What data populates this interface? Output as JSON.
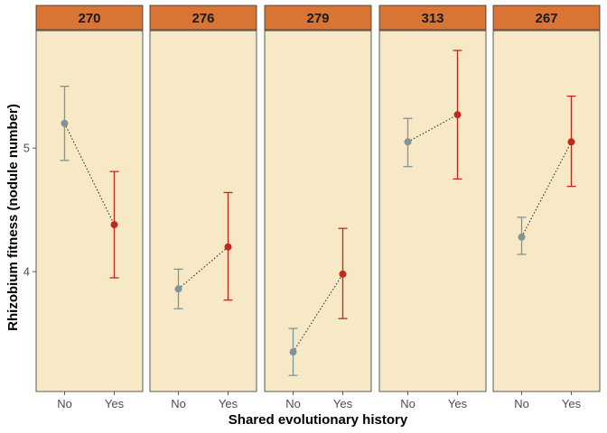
{
  "chart_data": {
    "type": "scatter",
    "title": "",
    "xlabel": "Shared evolutionary history",
    "ylabel": "Rhizobium fitness (nodule number)",
    "categories": [
      "No",
      "Yes"
    ],
    "ylim": [
      3.03,
      5.95
    ],
    "y_ticks": [
      4,
      5
    ],
    "grid": false,
    "legend": "none",
    "colors": {
      "No": "#7f9599",
      "Yes": "#c0291a",
      "panel_fill": "#f7e9c6",
      "strip_fill": "#d87534",
      "connector": "#333333"
    },
    "panels": [
      {
        "label": "270",
        "points": [
          {
            "category": "No",
            "mean": 5.2,
            "lower": 4.9,
            "upper": 5.5
          },
          {
            "category": "Yes",
            "mean": 4.38,
            "lower": 3.95,
            "upper": 4.81
          }
        ]
      },
      {
        "label": "276",
        "points": [
          {
            "category": "No",
            "mean": 3.86,
            "lower": 3.7,
            "upper": 4.02
          },
          {
            "category": "Yes",
            "mean": 4.2,
            "lower": 3.77,
            "upper": 4.64
          }
        ]
      },
      {
        "label": "279",
        "points": [
          {
            "category": "No",
            "mean": 3.35,
            "lower": 3.16,
            "upper": 3.54
          },
          {
            "category": "Yes",
            "mean": 3.98,
            "lower": 3.62,
            "upper": 4.35
          }
        ]
      },
      {
        "label": "313",
        "points": [
          {
            "category": "No",
            "mean": 5.05,
            "lower": 4.85,
            "upper": 5.24
          },
          {
            "category": "Yes",
            "mean": 5.27,
            "lower": 4.75,
            "upper": 5.79
          }
        ]
      },
      {
        "label": "267",
        "points": [
          {
            "category": "No",
            "mean": 4.28,
            "lower": 4.14,
            "upper": 4.44
          },
          {
            "category": "Yes",
            "mean": 5.05,
            "lower": 4.69,
            "upper": 5.42
          }
        ]
      }
    ]
  }
}
